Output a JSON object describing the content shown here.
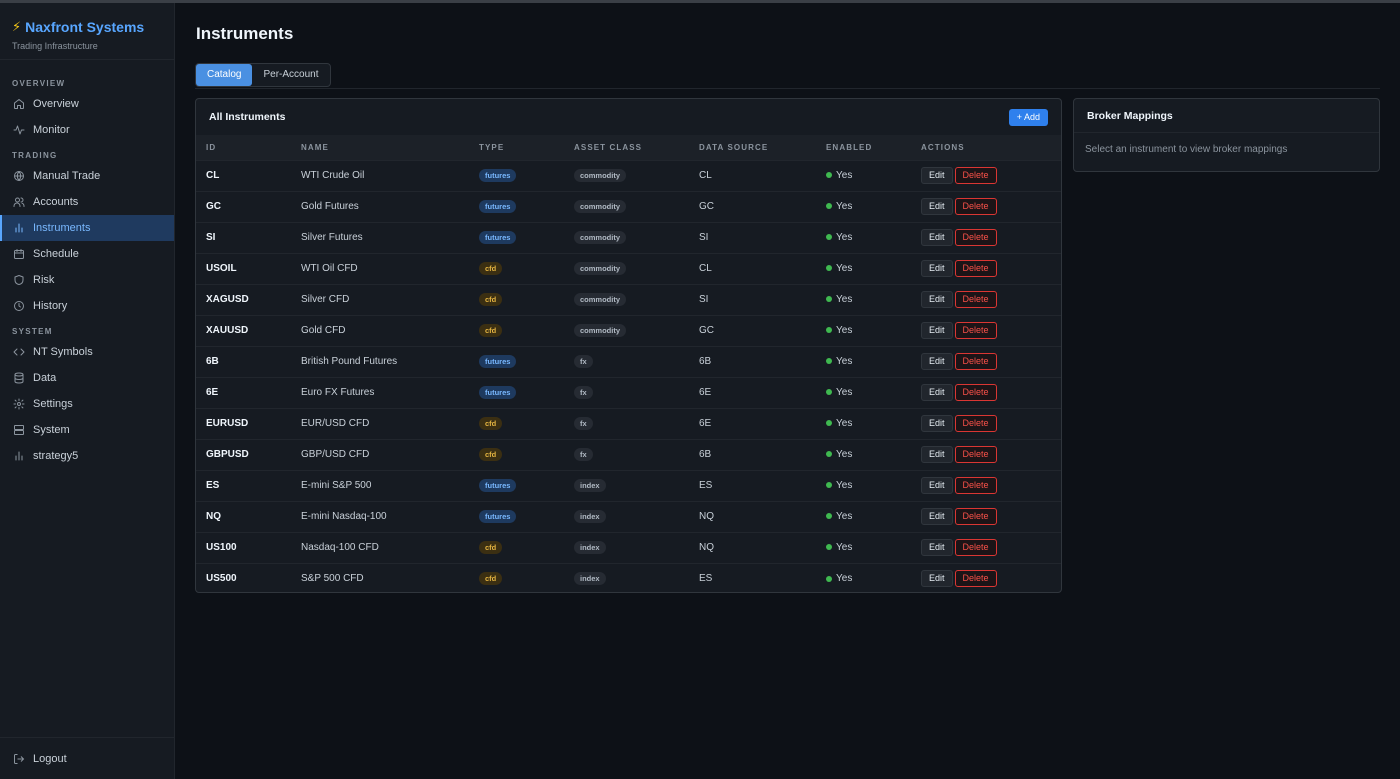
{
  "brand": {
    "name": "Naxfront Systems",
    "subtitle": "Trading Infrastructure"
  },
  "sidebar": {
    "sections": [
      {
        "label": "OVERVIEW",
        "items": [
          {
            "label": "Overview",
            "icon": "home-icon"
          },
          {
            "label": "Monitor",
            "icon": "activity-icon"
          }
        ]
      },
      {
        "label": "TRADING",
        "items": [
          {
            "label": "Manual Trade",
            "icon": "globe-icon"
          },
          {
            "label": "Accounts",
            "icon": "users-icon"
          },
          {
            "label": "Instruments",
            "icon": "bar-chart-icon",
            "active": true
          },
          {
            "label": "Schedule",
            "icon": "calendar-icon"
          },
          {
            "label": "Risk",
            "icon": "shield-icon"
          },
          {
            "label": "History",
            "icon": "clock-icon"
          }
        ]
      },
      {
        "label": "SYSTEM",
        "items": [
          {
            "label": "NT Symbols",
            "icon": "code-icon"
          },
          {
            "label": "Data",
            "icon": "database-icon"
          },
          {
            "label": "Settings",
            "icon": "gear-icon"
          },
          {
            "label": "System",
            "icon": "server-icon"
          },
          {
            "label": "strategy5",
            "icon": "bar-chart-icon"
          }
        ]
      }
    ],
    "logout": "Logout"
  },
  "page": {
    "title": "Instruments",
    "tabs": [
      {
        "label": "Catalog",
        "active": true
      },
      {
        "label": "Per-Account",
        "active": false
      }
    ]
  },
  "instruments_panel": {
    "title": "All Instruments",
    "add_label": "+ Add",
    "columns": [
      "ID",
      "NAME",
      "TYPE",
      "ASSET CLASS",
      "DATA SOURCE",
      "ENABLED",
      "ACTIONS"
    ],
    "edit_label": "Edit",
    "delete_label": "Delete",
    "rows": [
      {
        "id": "CL",
        "name": "WTI Crude Oil",
        "type": "futures",
        "asset_class": "commodity",
        "data_source": "CL",
        "enabled": "Yes"
      },
      {
        "id": "GC",
        "name": "Gold Futures",
        "type": "futures",
        "asset_class": "commodity",
        "data_source": "GC",
        "enabled": "Yes"
      },
      {
        "id": "SI",
        "name": "Silver Futures",
        "type": "futures",
        "asset_class": "commodity",
        "data_source": "SI",
        "enabled": "Yes"
      },
      {
        "id": "USOIL",
        "name": "WTI Oil CFD",
        "type": "cfd",
        "asset_class": "commodity",
        "data_source": "CL",
        "enabled": "Yes"
      },
      {
        "id": "XAGUSD",
        "name": "Silver CFD",
        "type": "cfd",
        "asset_class": "commodity",
        "data_source": "SI",
        "enabled": "Yes"
      },
      {
        "id": "XAUUSD",
        "name": "Gold CFD",
        "type": "cfd",
        "asset_class": "commodity",
        "data_source": "GC",
        "enabled": "Yes"
      },
      {
        "id": "6B",
        "name": "British Pound Futures",
        "type": "futures",
        "asset_class": "fx",
        "data_source": "6B",
        "enabled": "Yes"
      },
      {
        "id": "6E",
        "name": "Euro FX Futures",
        "type": "futures",
        "asset_class": "fx",
        "data_source": "6E",
        "enabled": "Yes"
      },
      {
        "id": "EURUSD",
        "name": "EUR/USD CFD",
        "type": "cfd",
        "asset_class": "fx",
        "data_source": "6E",
        "enabled": "Yes"
      },
      {
        "id": "GBPUSD",
        "name": "GBP/USD CFD",
        "type": "cfd",
        "asset_class": "fx",
        "data_source": "6B",
        "enabled": "Yes"
      },
      {
        "id": "ES",
        "name": "E-mini S&P 500",
        "type": "futures",
        "asset_class": "index",
        "data_source": "ES",
        "enabled": "Yes"
      },
      {
        "id": "NQ",
        "name": "E-mini Nasdaq-100",
        "type": "futures",
        "asset_class": "index",
        "data_source": "NQ",
        "enabled": "Yes"
      },
      {
        "id": "US100",
        "name": "Nasdaq-100 CFD",
        "type": "cfd",
        "asset_class": "index",
        "data_source": "NQ",
        "enabled": "Yes"
      },
      {
        "id": "US500",
        "name": "S&P 500 CFD",
        "type": "cfd",
        "asset_class": "index",
        "data_source": "ES",
        "enabled": "Yes"
      }
    ]
  },
  "mappings_panel": {
    "title": "Broker Mappings",
    "empty_text": "Select an instrument to view broker mappings"
  },
  "colors": {
    "accent": "#4a90e2",
    "enabled_dot": "#3fb950",
    "delete": "#f85149",
    "brand": "#58a6ff"
  }
}
